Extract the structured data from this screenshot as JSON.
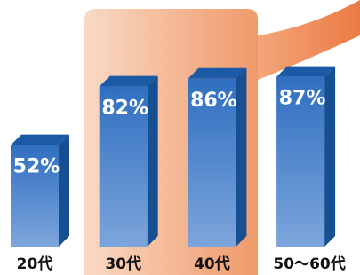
{
  "chart_data": {
    "type": "bar3d",
    "categories": [
      "20代",
      "30代",
      "40代",
      "50〜60代"
    ],
    "values": [
      52,
      82,
      86,
      87
    ],
    "value_labels": [
      "52%",
      "82%",
      "86%",
      "87%"
    ],
    "color": "#3a78c8"
  }
}
